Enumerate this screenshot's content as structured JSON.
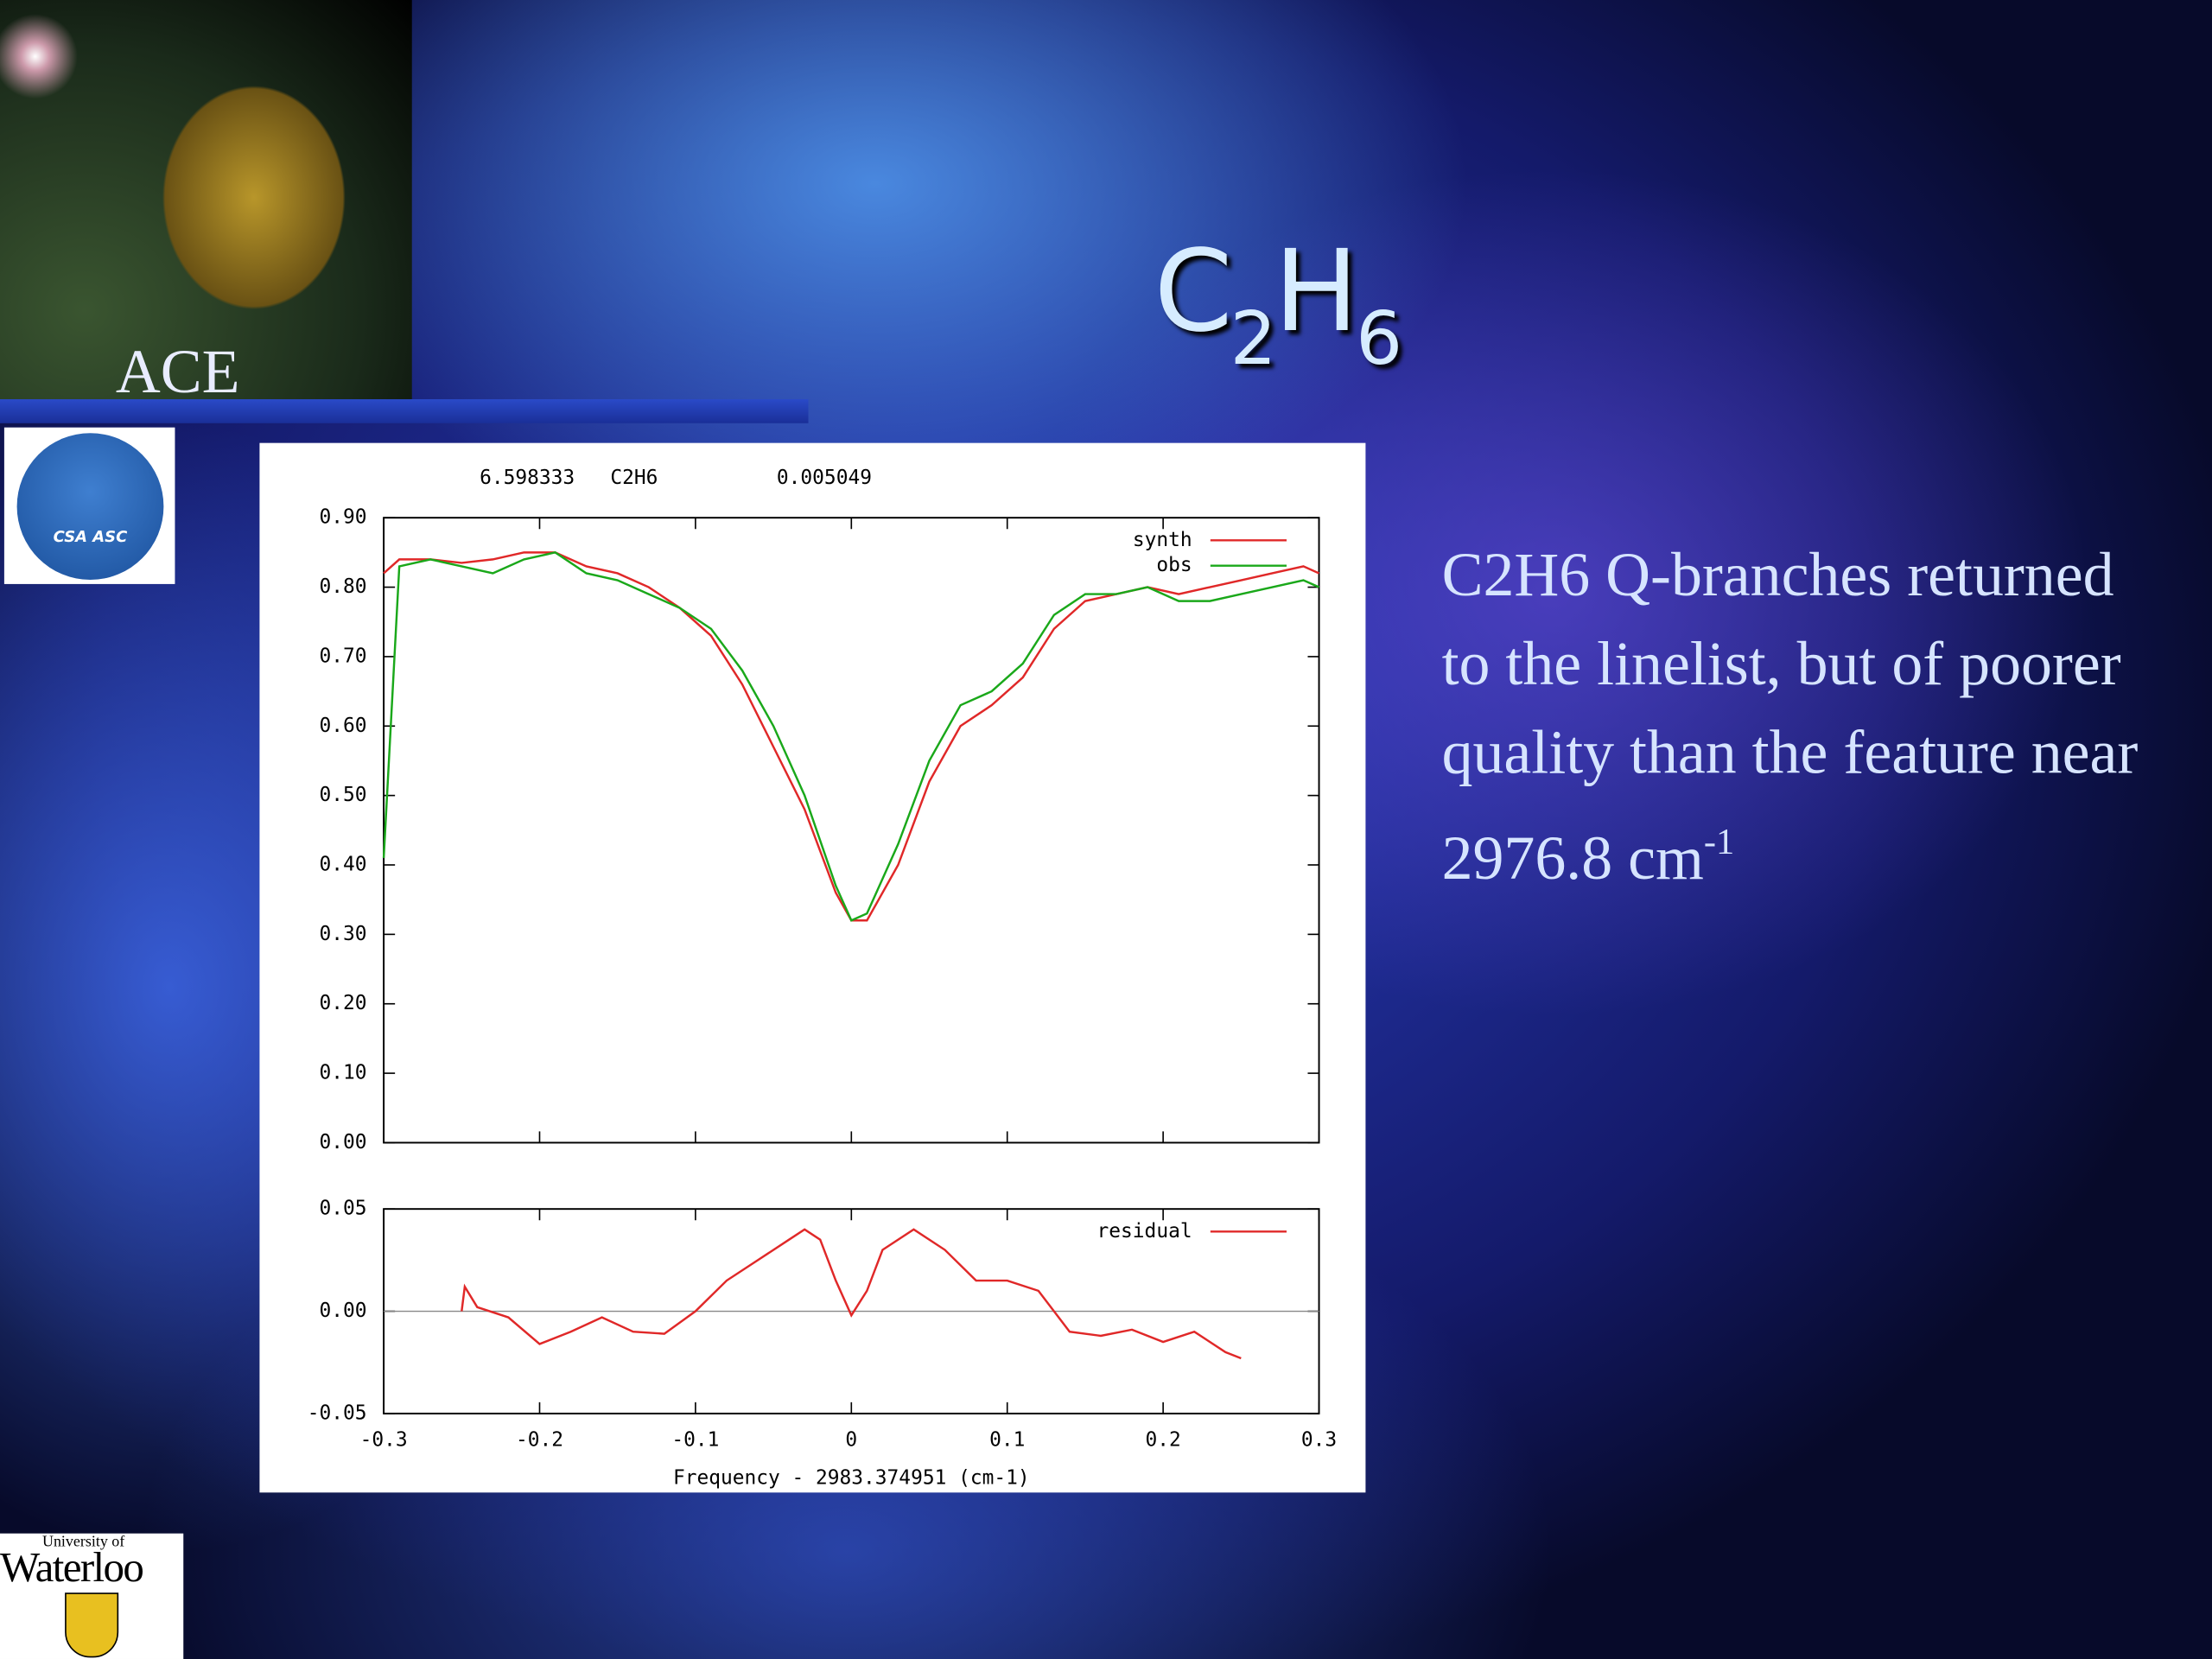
{
  "slide": {
    "title": [
      "C",
      "2",
      "H",
      "6"
    ],
    "body": "C2H6 Q-branches returned to the linelist, but of poorer quality than the feature near 2976.8 cm",
    "body_superscript": "-1",
    "logos": {
      "ace": "ACE",
      "csa": "CSA ASC",
      "waterloo_small": "University of",
      "waterloo": "Waterloo"
    }
  },
  "chart_data": [
    {
      "type": "line",
      "title": "6.598333   C2H6          0.005049",
      "x": [
        -0.3,
        -0.29,
        -0.27,
        -0.25,
        -0.23,
        -0.21,
        -0.19,
        -0.17,
        -0.15,
        -0.13,
        -0.11,
        -0.09,
        -0.07,
        -0.05,
        -0.03,
        -0.01,
        0,
        0.01,
        0.03,
        0.05,
        0.07,
        0.09,
        0.11,
        0.13,
        0.15,
        0.17,
        0.19,
        0.21,
        0.23,
        0.25,
        0.27,
        0.29,
        0.3
      ],
      "series": [
        {
          "name": "synth",
          "color": "#e02828",
          "values": [
            0.82,
            0.84,
            0.84,
            0.835,
            0.84,
            0.85,
            0.85,
            0.83,
            0.82,
            0.8,
            0.77,
            0.73,
            0.66,
            0.57,
            0.48,
            0.36,
            0.32,
            0.32,
            0.4,
            0.52,
            0.6,
            0.63,
            0.67,
            0.74,
            0.78,
            0.79,
            0.8,
            0.79,
            0.8,
            0.81,
            0.82,
            0.83,
            0.82
          ]
        },
        {
          "name": "obs",
          "color": "#1aa81a",
          "values": [
            0.41,
            0.83,
            0.84,
            0.83,
            0.82,
            0.84,
            0.85,
            0.82,
            0.81,
            0.79,
            0.77,
            0.74,
            0.68,
            0.6,
            0.5,
            0.37,
            0.32,
            0.33,
            0.43,
            0.55,
            0.63,
            0.65,
            0.69,
            0.76,
            0.79,
            0.79,
            0.8,
            0.78,
            0.78,
            0.79,
            0.8,
            0.81,
            0.8
          ]
        }
      ],
      "xlim": [
        -0.3,
        0.3
      ],
      "ylim": [
        0,
        0.9
      ],
      "yticks": [
        {
          "value": 0.9,
          "label": "0.90"
        },
        {
          "value": 0.8,
          "label": "0.80"
        },
        {
          "value": 0.7,
          "label": "0.70"
        },
        {
          "value": 0.6,
          "label": "0.60"
        },
        {
          "value": 0.5,
          "label": "0.50"
        },
        {
          "value": 0.4,
          "label": "0.40"
        },
        {
          "value": 0.3,
          "label": "0.30"
        },
        {
          "value": 0.2,
          "label": "0.20"
        },
        {
          "value": 0.1,
          "label": "0.10"
        },
        {
          "value": 0,
          "label": "0.00"
        }
      ],
      "legend": "upper right",
      "grid": false
    },
    {
      "type": "line",
      "xlabel": "Frequency - 2983.374951 (cm-1)",
      "x": [
        -0.25,
        -0.248,
        -0.24,
        -0.22,
        -0.2,
        -0.18,
        -0.16,
        -0.14,
        -0.12,
        -0.1,
        -0.08,
        -0.06,
        -0.04,
        -0.03,
        -0.02,
        -0.01,
        0,
        0.01,
        0.02,
        0.04,
        0.06,
        0.08,
        0.1,
        0.12,
        0.14,
        0.16,
        0.18,
        0.2,
        0.22,
        0.24,
        0.25
      ],
      "series": [
        {
          "name": "residual",
          "color": "#e02828",
          "values": [
            0,
            0.012,
            0.002,
            -0.003,
            -0.016,
            -0.01,
            -0.003,
            -0.01,
            -0.011,
            0,
            0.015,
            0.025,
            0.035,
            0.04,
            0.035,
            0.015,
            -0.002,
            0.01,
            0.03,
            0.04,
            0.03,
            0.015,
            0.015,
            0.01,
            -0.01,
            -0.012,
            -0.009,
            -0.015,
            -0.01,
            -0.02,
            -0.023
          ]
        }
      ],
      "xlim": [
        -0.3,
        0.3
      ],
      "xticks": [
        -0.3,
        -0.2,
        -0.1,
        0,
        0.1,
        0.2,
        0.3
      ],
      "ylim": [
        -0.05,
        0.05
      ],
      "yticks": [
        {
          "value": 0.05,
          "label": "0.05"
        },
        {
          "value": 0,
          "label": "0.00"
        },
        {
          "value": -0.05,
          "label": "-0.05"
        }
      ],
      "legend": "upper right",
      "zero_line": true,
      "grid": false
    }
  ]
}
